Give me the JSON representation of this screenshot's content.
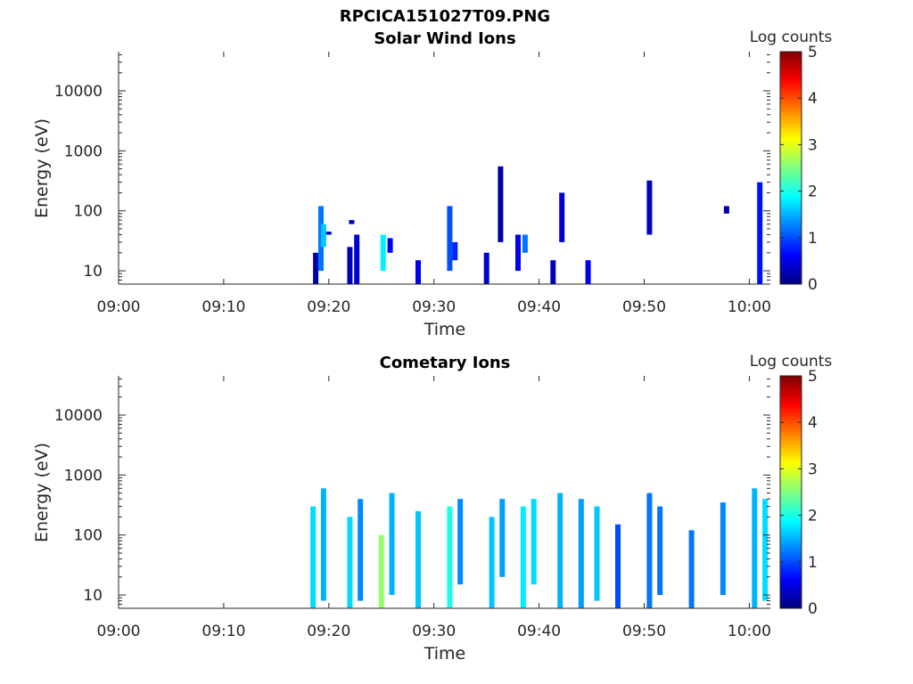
{
  "figure": {
    "title": "RPCICA151027T09.PNG"
  },
  "panels": [
    {
      "title": "Solar Wind Ions",
      "ylabel": "Energy (eV)",
      "xlabel": "Time",
      "colorbar_label": "Log counts"
    },
    {
      "title": "Cometary Ions",
      "ylabel": "Energy (eV)",
      "xlabel": "Time",
      "colorbar_label": "Log counts"
    }
  ],
  "colormap": [
    "#000080",
    "#0000ff",
    "#0080ff",
    "#00ffff",
    "#80ff80",
    "#ffff00",
    "#ff8000",
    "#ff0000",
    "#800000"
  ],
  "chart_data": [
    {
      "type": "heatmap",
      "title": "Solar Wind Ions",
      "xlabel": "Time",
      "ylabel": "Energy (eV)",
      "yscale": "log",
      "xlim": [
        "09:00",
        "10:02"
      ],
      "ylim": [
        6,
        45000
      ],
      "x_ticks": [
        "09:00",
        "09:10",
        "09:20",
        "09:30",
        "09:40",
        "09:50",
        "10:00"
      ],
      "y_ticks": [
        10,
        100,
        1000,
        10000
      ],
      "y_tick_labels": [
        "10",
        "100",
        "1000",
        "10000"
      ],
      "colorbar": {
        "label": "Log counts",
        "range": [
          0,
          5
        ],
        "ticks": [
          "0",
          "1",
          "2",
          "3",
          "4",
          "5"
        ],
        "colormap": "jet"
      },
      "cells": [
        {
          "t": "09:18:45",
          "e_low": 6,
          "e_high": 20,
          "log_counts": 0.2
        },
        {
          "t": "09:19:15",
          "e_low": 10,
          "e_high": 120,
          "log_counts": 1.2
        },
        {
          "t": "09:19:30",
          "e_low": 25,
          "e_high": 60,
          "log_counts": 1.6
        },
        {
          "t": "09:20:00",
          "e_low": 40,
          "e_high": 45,
          "log_counts": 0.3
        },
        {
          "t": "09:22:00",
          "e_low": 6,
          "e_high": 25,
          "log_counts": 0.3
        },
        {
          "t": "09:22:40",
          "e_low": 6,
          "e_high": 40,
          "log_counts": 0.4
        },
        {
          "t": "09:22:10",
          "e_low": 60,
          "e_high": 70,
          "log_counts": 0.3
        },
        {
          "t": "09:25:10",
          "e_low": 10,
          "e_high": 40,
          "log_counts": 1.8
        },
        {
          "t": "09:25:50",
          "e_low": 20,
          "e_high": 35,
          "log_counts": 0.6
        },
        {
          "t": "09:28:30",
          "e_low": 6,
          "e_high": 15,
          "log_counts": 0.5
        },
        {
          "t": "09:31:30",
          "e_low": 10,
          "e_high": 120,
          "log_counts": 1.0
        },
        {
          "t": "09:32:00",
          "e_low": 15,
          "e_high": 30,
          "log_counts": 0.8
        },
        {
          "t": "09:35:00",
          "e_low": 6,
          "e_high": 20,
          "log_counts": 0.4
        },
        {
          "t": "09:36:20",
          "e_low": 30,
          "e_high": 550,
          "log_counts": 0.2
        },
        {
          "t": "09:38:00",
          "e_low": 10,
          "e_high": 40,
          "log_counts": 0.5
        },
        {
          "t": "09:38:40",
          "e_low": 20,
          "e_high": 40,
          "log_counts": 1.2
        },
        {
          "t": "09:41:20",
          "e_low": 6,
          "e_high": 15,
          "log_counts": 0.3
        },
        {
          "t": "09:42:10",
          "e_low": 30,
          "e_high": 200,
          "log_counts": 0.4
        },
        {
          "t": "09:44:40",
          "e_low": 6,
          "e_high": 15,
          "log_counts": 0.5
        },
        {
          "t": "09:50:30",
          "e_low": 40,
          "e_high": 320,
          "log_counts": 0.3
        },
        {
          "t": "09:57:50",
          "e_low": 90,
          "e_high": 120,
          "log_counts": 0.2
        },
        {
          "t": "10:01:00",
          "e_low": 6,
          "e_high": 300,
          "log_counts": 0.7
        }
      ]
    },
    {
      "type": "heatmap",
      "title": "Cometary Ions",
      "xlabel": "Time",
      "ylabel": "Energy (eV)",
      "yscale": "log",
      "xlim": [
        "09:00",
        "10:02"
      ],
      "ylim": [
        6,
        45000
      ],
      "x_ticks": [
        "09:00",
        "09:10",
        "09:20",
        "09:30",
        "09:40",
        "09:50",
        "10:00"
      ],
      "y_ticks": [
        10,
        100,
        1000,
        10000
      ],
      "y_tick_labels": [
        "10",
        "100",
        "1000",
        "10000"
      ],
      "colorbar": {
        "label": "Log counts",
        "range": [
          0,
          5
        ],
        "ticks": [
          "0",
          "1",
          "2",
          "3",
          "4",
          "5"
        ],
        "colormap": "jet"
      },
      "cells": [
        {
          "t": "09:18:30",
          "e_low": 6,
          "e_high": 300,
          "log_counts": 1.7
        },
        {
          "t": "09:19:30",
          "e_low": 8,
          "e_high": 600,
          "log_counts": 1.5
        },
        {
          "t": "09:22:00",
          "e_low": 6,
          "e_high": 200,
          "log_counts": 1.7
        },
        {
          "t": "09:23:00",
          "e_low": 8,
          "e_high": 400,
          "log_counts": 1.3
        },
        {
          "t": "09:25:00",
          "e_low": 6,
          "e_high": 100,
          "log_counts": 2.6
        },
        {
          "t": "09:26:00",
          "e_low": 10,
          "e_high": 500,
          "log_counts": 1.5
        },
        {
          "t": "09:28:30",
          "e_low": 6,
          "e_high": 250,
          "log_counts": 1.6
        },
        {
          "t": "09:31:30",
          "e_low": 6,
          "e_high": 300,
          "log_counts": 2.0
        },
        {
          "t": "09:32:30",
          "e_low": 15,
          "e_high": 400,
          "log_counts": 1.3
        },
        {
          "t": "09:35:30",
          "e_low": 6,
          "e_high": 200,
          "log_counts": 1.6
        },
        {
          "t": "09:36:30",
          "e_low": 20,
          "e_high": 400,
          "log_counts": 1.4
        },
        {
          "t": "09:38:30",
          "e_low": 6,
          "e_high": 300,
          "log_counts": 1.8
        },
        {
          "t": "09:39:30",
          "e_low": 15,
          "e_high": 400,
          "log_counts": 1.7
        },
        {
          "t": "09:42:00",
          "e_low": 6,
          "e_high": 500,
          "log_counts": 1.5
        },
        {
          "t": "09:44:00",
          "e_low": 6,
          "e_high": 400,
          "log_counts": 1.4
        },
        {
          "t": "09:45:30",
          "e_low": 8,
          "e_high": 300,
          "log_counts": 1.6
        },
        {
          "t": "09:47:30",
          "e_low": 6,
          "e_high": 150,
          "log_counts": 1.0
        },
        {
          "t": "09:50:30",
          "e_low": 6,
          "e_high": 500,
          "log_counts": 1.2
        },
        {
          "t": "09:51:30",
          "e_low": 10,
          "e_high": 300,
          "log_counts": 1.2
        },
        {
          "t": "09:54:30",
          "e_low": 6,
          "e_high": 120,
          "log_counts": 1.2
        },
        {
          "t": "09:57:30",
          "e_low": 10,
          "e_high": 350,
          "log_counts": 1.3
        },
        {
          "t": "10:00:30",
          "e_low": 6,
          "e_high": 600,
          "log_counts": 1.5
        },
        {
          "t": "10:01:30",
          "e_low": 8,
          "e_high": 400,
          "log_counts": 1.7
        }
      ]
    }
  ]
}
